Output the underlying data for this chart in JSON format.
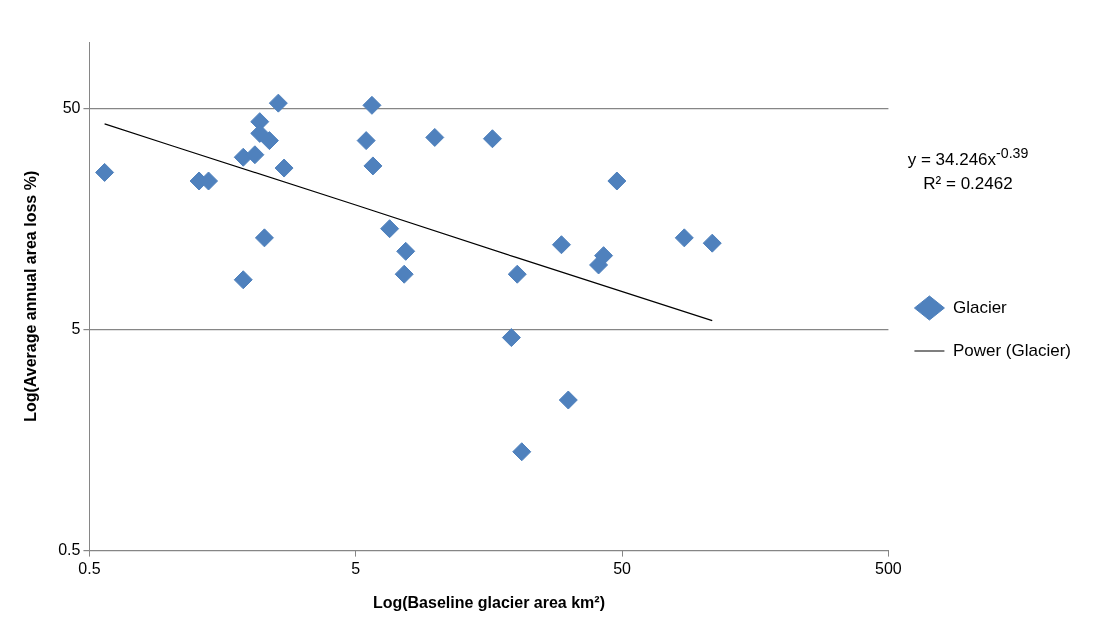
{
  "chart_data": {
    "type": "scatter",
    "xlabel": "Log(Baseline glacier area km²)",
    "ylabel": "Log(Average annual area loss %)",
    "log": "xy",
    "xlim": [
      0.5,
      500
    ],
    "ylim": [
      0.5,
      100
    ],
    "xticks": [
      0.5,
      5,
      50,
      500
    ],
    "yticks": [
      0.5,
      5,
      50
    ],
    "grid": "y",
    "legend": "right",
    "annotations": [
      "y = 34.246x$^{-0.39}$",
      "R² = 0.2462"
    ],
    "series": [
      {
        "name": "Glacier",
        "type": "scatter",
        "color": "#4f81bd",
        "marker": "diamond",
        "x": [
          0.57,
          1.29,
          1.4,
          1.89,
          2.09,
          2.18,
          2.18,
          2.37,
          2.56,
          2.69,
          2.27,
          1.89,
          5.47,
          5.75,
          5.8,
          6.7,
          7.7,
          7.6,
          9.9,
          16.3,
          20.2,
          19.2,
          21,
          29.6,
          31.4,
          40.8,
          42.6,
          47.8,
          85.6,
          109
        ],
        "values": [
          25.7,
          23.5,
          23.5,
          30.1,
          30.9,
          43.6,
          38.6,
          35.8,
          52.9,
          26.9,
          13.0,
          8.4,
          35.8,
          51.7,
          27.5,
          14.3,
          11.3,
          8.9,
          37.0,
          36.5,
          8.9,
          4.6,
          1.4,
          12.1,
          2.4,
          9.8,
          10.8,
          23.5,
          13.0,
          12.3
        ]
      },
      {
        "name": "Power (Glacier)",
        "type": "line",
        "color": "#000000",
        "marker": "none",
        "line_style": "solid",
        "x": [
          0.57,
          1,
          5,
          20,
          109
        ],
        "values": [
          42.6,
          34.2,
          18.3,
          10.6,
          5.49
        ]
      }
    ]
  }
}
